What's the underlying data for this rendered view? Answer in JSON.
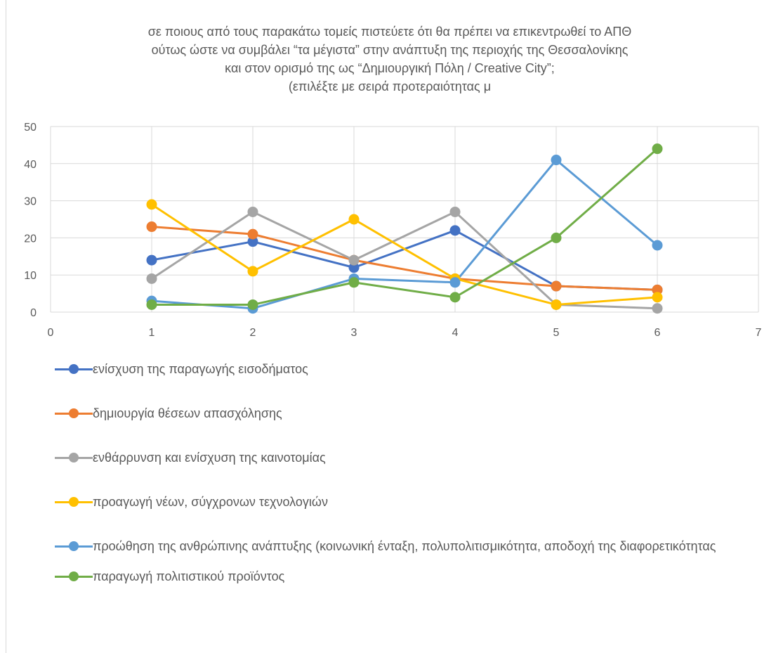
{
  "chart_data": {
    "type": "line",
    "title": [
      "σε ποιους από τους παρακάτω τομείς πιστεύετε ότι θα πρέπει να επικεντρωθεί το ΑΠΘ",
      "ούτως ώστε να συμβάλει “τα μέγιστα” στην ανάπτυξη της περιοχής της Θεσσαλονίκης",
      "και στον ορισμό της ως “Δημιουργική Πόλη / Creative City”;",
      "(επιλέξτε με σειρά προτεραιότητας μ"
    ],
    "x": [
      1,
      2,
      3,
      4,
      5,
      6
    ],
    "xlim": [
      0,
      7
    ],
    "ylim": [
      0,
      50
    ],
    "xticks": [
      0,
      1,
      2,
      3,
      4,
      5,
      6,
      7
    ],
    "yticks": [
      0,
      10,
      20,
      30,
      40,
      50
    ],
    "grid": true,
    "legend_position": "bottom",
    "series": [
      {
        "name": "ενίσχυση της παραγωγής εισοδήματος",
        "color": "#4472C4",
        "values": [
          14,
          19,
          12,
          22,
          7,
          6
        ]
      },
      {
        "name": "δημιουργία θέσεων απασχόλησης",
        "color": "#ED7D31",
        "values": [
          23,
          21,
          14,
          9,
          7,
          6
        ]
      },
      {
        "name": "ενθάρρυνση και ενίσχυση της καινοτομίας",
        "color": "#A5A5A5",
        "values": [
          9,
          27,
          14,
          27,
          2,
          1
        ]
      },
      {
        "name": "προαγωγή νέων, σύγχρονων τεχνολογιών",
        "color": "#FFC000",
        "values": [
          29,
          11,
          25,
          9,
          2,
          4
        ]
      },
      {
        "name": "προώθηση της ανθρώπινης ανάπτυξης (κοινωνική ένταξη, πολυπολιτισμικότητα, αποδοχή της διαφορετικότητας",
        "color": "#5B9BD5",
        "values": [
          3,
          1,
          9,
          8,
          41,
          18
        ]
      },
      {
        "name": "παραγωγή πολιτιστικού προϊόντος",
        "color": "#70AD47",
        "values": [
          2,
          2,
          8,
          4,
          20,
          44
        ]
      }
    ]
  }
}
